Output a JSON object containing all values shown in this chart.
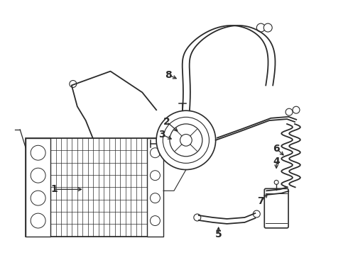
{
  "bg_color": "#ffffff",
  "line_color": "#2a2a2a",
  "figsize": [
    4.9,
    3.6
  ],
  "dpi": 100,
  "labels": [
    "1",
    "2",
    "3",
    "4",
    "5",
    "6",
    "7",
    "8"
  ]
}
